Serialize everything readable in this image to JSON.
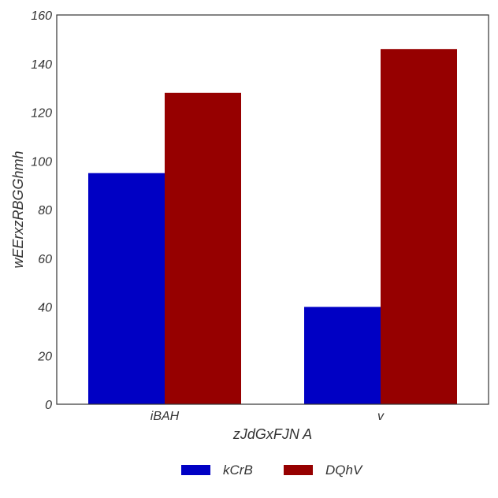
{
  "chart_data": {
    "type": "bar",
    "title": "",
    "xlabel": "zJdGxFJN A",
    "ylabel": "wEErxzRBGGhmh",
    "categories": [
      "iBAH",
      "v"
    ],
    "series": [
      {
        "name": "kCrB",
        "values": [
          95,
          40
        ],
        "color": "#0000c4"
      },
      {
        "name": "DQhV",
        "values": [
          128,
          146
        ],
        "color": "#960000"
      }
    ],
    "ylim": [
      0,
      160
    ],
    "yticks": [
      0,
      20,
      40,
      60,
      80,
      100,
      120,
      140,
      160
    ],
    "grid": false,
    "legend_position": "bottom-center"
  }
}
